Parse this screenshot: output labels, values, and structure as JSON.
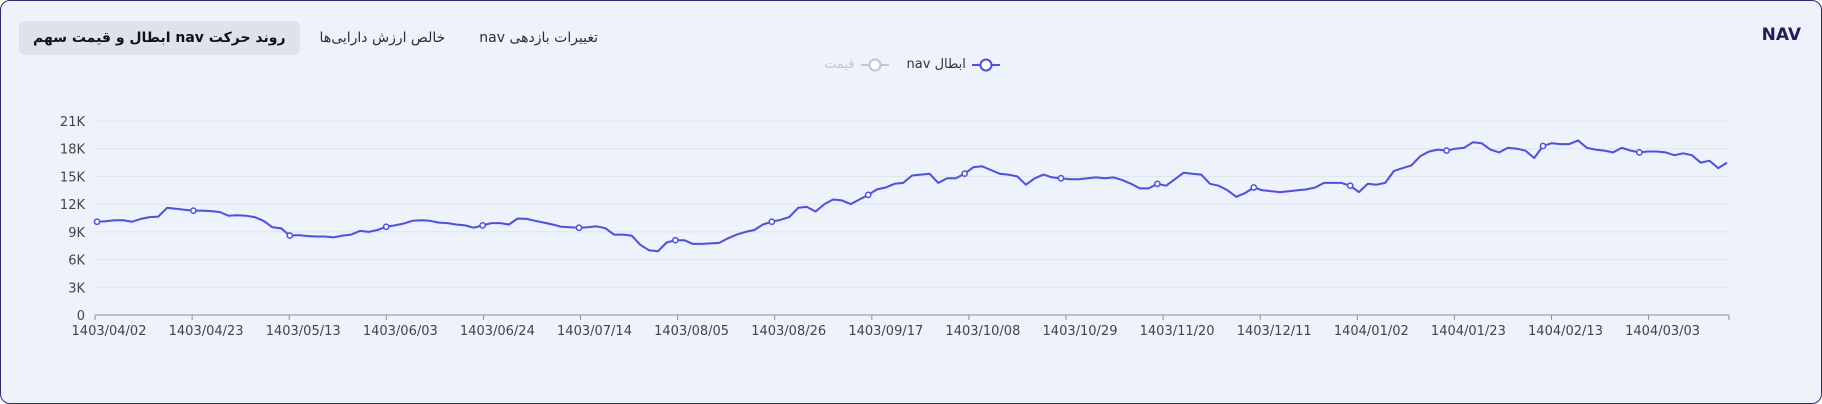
{
  "header": {
    "title": "NAV"
  },
  "tabs": [
    {
      "label": "روند حرکت nav ابطال و قیمت سهم",
      "active": true
    },
    {
      "label": "خالص ارزش دارایی‌ها",
      "active": false
    },
    {
      "label": "تغییرات بازدهی nav",
      "active": false
    }
  ],
  "legend": [
    {
      "label": "ابطال nav",
      "color": "#4b4ef0",
      "enabled": true
    },
    {
      "label": "قیمت",
      "color": "#c4c6cc",
      "enabled": false
    }
  ],
  "chart_data": {
    "type": "line",
    "y_ticks": [
      "0",
      "3K",
      "6K",
      "9K",
      "12K",
      "15K",
      "18K",
      "21K"
    ],
    "ylim": [
      0,
      21000
    ],
    "x_ticks": [
      "1403/04/02",
      "1403/04/23",
      "1403/05/13",
      "1403/06/03",
      "1403/06/24",
      "1403/07/14",
      "1403/08/05",
      "1403/08/26",
      "1403/09/17",
      "1403/10/08",
      "1403/10/29",
      "1403/11/20",
      "1403/12/11",
      "1404/01/02",
      "1404/01/23",
      "1404/02/13",
      "1404/03/03"
    ],
    "series": [
      {
        "name": "ابطال nav",
        "color": "#4b4ef0",
        "values": [
          10100,
          10150,
          10250,
          10250,
          10100,
          10400,
          10600,
          10650,
          11600,
          11500,
          11400,
          11300,
          11300,
          11250,
          11150,
          10750,
          10800,
          10750,
          10600,
          10200,
          9500,
          9400,
          8600,
          8650,
          8550,
          8500,
          8500,
          8400,
          8600,
          8700,
          9100,
          9000,
          9200,
          9550,
          9700,
          9900,
          10200,
          10250,
          10200,
          10000,
          9950,
          9800,
          9700,
          9450,
          9700,
          9950,
          9950,
          9800,
          10450,
          10400,
          10200,
          10000,
          9800,
          9550,
          9500,
          9450,
          9500,
          9600,
          9400,
          8700,
          8700,
          8600,
          7600,
          7000,
          6900,
          7850,
          8100,
          8100,
          7700,
          7700,
          7750,
          7800,
          8300,
          8700,
          9000,
          9200,
          9800,
          10100,
          10300,
          10600,
          11600,
          11700,
          11200,
          12000,
          12500,
          12400,
          12000,
          12500,
          13000,
          13600,
          13800,
          14200,
          14300,
          15100,
          15200,
          15300,
          14300,
          14800,
          14800,
          15300,
          16000,
          16100,
          15700,
          15300,
          15200,
          15000,
          14100,
          14800,
          15200,
          14900,
          14800,
          14700,
          14700,
          14800,
          14900,
          14800,
          14900,
          14600,
          14200,
          13700,
          13700,
          14200,
          14000,
          14700,
          15400,
          15300,
          15200,
          14200,
          14000,
          13500,
          12800,
          13200,
          13800,
          13500,
          13400,
          13300,
          13400,
          13500,
          13600,
          13800,
          14300,
          14300,
          14300,
          14000,
          13300,
          14200,
          14100,
          14300,
          15600,
          15900,
          16200,
          17200,
          17700,
          17900,
          17800,
          18000,
          18100,
          18700,
          18600,
          17900,
          17600,
          18100,
          18000,
          17800,
          17000,
          18300,
          18600,
          18500,
          18500,
          18900,
          18100,
          17900,
          17800,
          17600,
          18100,
          17800,
          17600,
          17700,
          17700,
          17600,
          17300,
          17500,
          17300,
          16500,
          16700,
          15900,
          16500
        ]
      }
    ]
  }
}
